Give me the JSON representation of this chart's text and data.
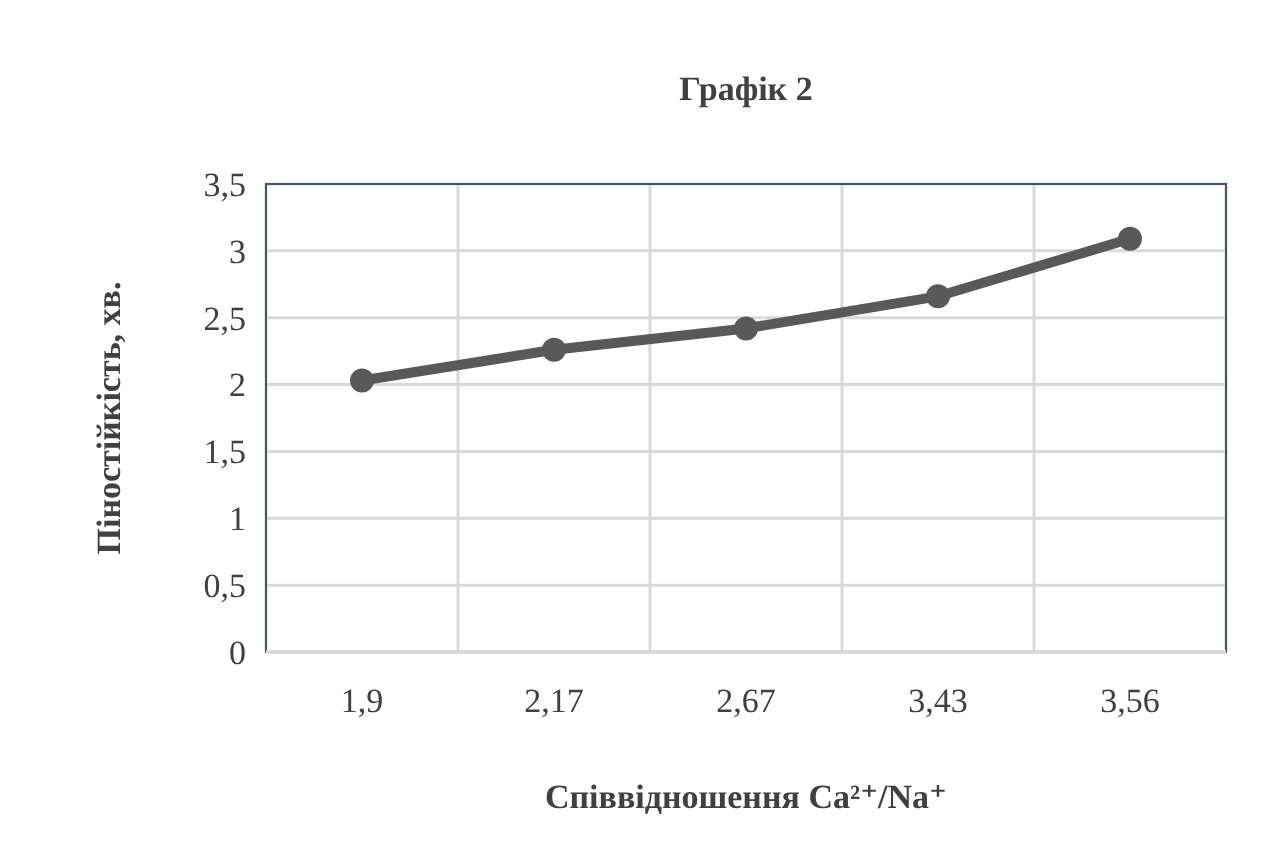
{
  "chart_data": {
    "type": "line",
    "title": "Графік 2",
    "xlabel": "Співвідношення Ca²⁺/Na⁺",
    "ylabel": "Піностійкість, хв.",
    "categories": [
      "1,9",
      "2,17",
      "2,67",
      "3,43",
      "3,56"
    ],
    "series": [
      {
        "color": "#595959",
        "values": [
          2.03,
          2.26,
          2.42,
          2.66,
          3.09
        ]
      }
    ],
    "ylim": [
      0,
      3.5
    ],
    "yticks": [
      0,
      {
        "value": 0.5,
        "label": "0,5"
      },
      1,
      {
        "value": 1.5,
        "label": "1,5"
      },
      2,
      {
        "value": 2.5,
        "label": "2,5"
      },
      3,
      {
        "value": 3.5,
        "label": "3,5"
      }
    ],
    "grid": true,
    "marker": "circle",
    "line_style": "solid"
  }
}
